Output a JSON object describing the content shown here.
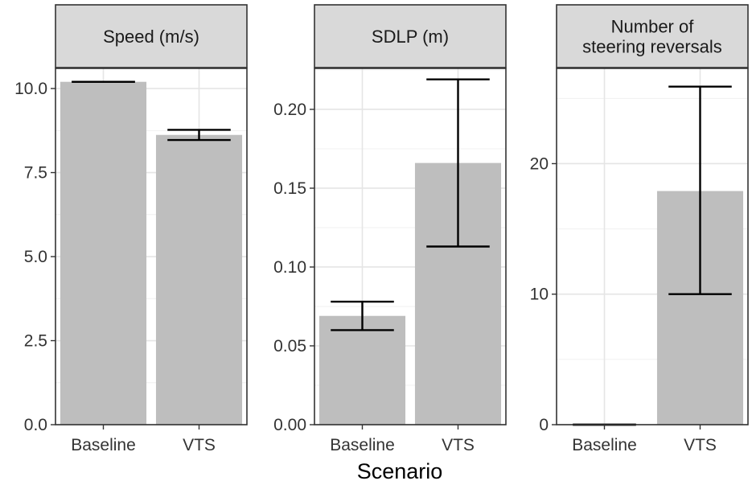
{
  "chart_data": {
    "type": "bar",
    "xlabel": "Scenario",
    "categories": [
      "Baseline",
      "VTS"
    ],
    "panels": [
      {
        "title_lines": [
          "Speed (m/s)"
        ],
        "ylim": [
          0,
          10.6
        ],
        "yticks": [
          0,
          2.5,
          5,
          7.5,
          10
        ],
        "ytick_labels": [
          "0.0",
          "2.5",
          "5.0",
          "7.5",
          "10.0"
        ],
        "values": [
          10.2,
          8.62
        ],
        "err_low": [
          10.2,
          8.47
        ],
        "err_high": [
          10.2,
          8.77
        ]
      },
      {
        "title_lines": [
          "SDLP (m)"
        ],
        "ylim": [
          0,
          0.226
        ],
        "yticks": [
          0,
          0.05,
          0.1,
          0.15,
          0.2
        ],
        "ytick_labels": [
          "0.00",
          "0.05",
          "0.10",
          "0.15",
          "0.20"
        ],
        "values": [
          0.069,
          0.166
        ],
        "err_low": [
          0.06,
          0.113
        ],
        "err_high": [
          0.078,
          0.219
        ]
      },
      {
        "title_lines": [
          "Number of",
          "steering reversals"
        ],
        "ylim": [
          0,
          27.3
        ],
        "yticks": [
          0,
          10,
          20
        ],
        "ytick_labels": [
          "0",
          "10",
          "20"
        ],
        "values": [
          0,
          17.9
        ],
        "err_low": [
          0,
          10
        ],
        "err_high": [
          0,
          25.9
        ]
      }
    ]
  }
}
